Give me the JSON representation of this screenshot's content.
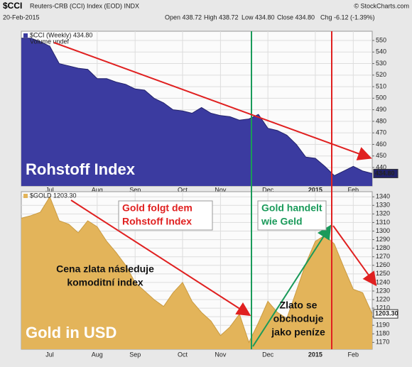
{
  "header": {
    "symbol": "$CCI",
    "name": "Reuters-CRB (CCI) Index (EOD) INDX",
    "source": "© StockCharts.com",
    "date": "20-Feb-2015",
    "quote": [
      "Open 438.72",
      "High 438.72",
      "Low 434.80",
      "Close 434.80",
      "Chg -6.12 (-1.39%)"
    ]
  },
  "chart_data": [
    {
      "type": "area",
      "label": "Rohstoff Index",
      "subtitle": "Volume undef",
      "categories": [
        null,
        null,
        null,
        "Jul",
        null,
        null,
        null,
        null,
        "Aug",
        null,
        null,
        null,
        "Sep",
        null,
        null,
        null,
        null,
        "Oct",
        null,
        null,
        null,
        "Nov",
        null,
        null,
        null,
        null,
        "Dec",
        null,
        null,
        null,
        null,
        "2015",
        null,
        null,
        null,
        "Feb",
        null,
        null
      ],
      "series": [
        {
          "name": "$CCI (Weekly) 434.80",
          "color": "#3b3ba0",
          "values": [
            552,
            552,
            549,
            545,
            530,
            528,
            526,
            525,
            517,
            517,
            514,
            512,
            508,
            507,
            500,
            496,
            490,
            489,
            487,
            492,
            487,
            485,
            484,
            481,
            482,
            486,
            474,
            472,
            468,
            460,
            449,
            448,
            441,
            433,
            437,
            441,
            437,
            434.8
          ],
          "value_labels": [
            null,
            null,
            null,
            null,
            null,
            null,
            null,
            null,
            null,
            null,
            null,
            null,
            null,
            null,
            null,
            null,
            null,
            null,
            null,
            null,
            null,
            null,
            null,
            null,
            null,
            null,
            null,
            null,
            null,
            null,
            null,
            null,
            null,
            null,
            null,
            null,
            null,
            "434.80"
          ]
        }
      ],
      "ylim": [
        424,
        558
      ],
      "yticks": [
        440,
        450,
        460,
        470,
        480,
        490,
        500,
        510,
        520,
        530,
        540,
        550
      ],
      "grid": true
    },
    {
      "type": "area",
      "label": "Gold in USD",
      "categories": [
        null,
        null,
        null,
        "Jul",
        null,
        null,
        null,
        null,
        "Aug",
        null,
        null,
        null,
        "Sep",
        null,
        null,
        null,
        null,
        "Oct",
        null,
        null,
        null,
        "Nov",
        null,
        null,
        null,
        null,
        "Dec",
        null,
        null,
        null,
        null,
        "2015",
        null,
        null,
        null,
        "Feb",
        null,
        null
      ],
      "series": [
        {
          "name": "$GOLD 1203.30",
          "color": "#e3b45a",
          "values": [
            1315,
            1318,
            1322,
            1340,
            1312,
            1308,
            1298,
            1312,
            1305,
            1288,
            1275,
            1260,
            1240,
            1230,
            1220,
            1212,
            1228,
            1240,
            1218,
            1205,
            1195,
            1178,
            1188,
            1203,
            1170,
            1193,
            1218,
            1205,
            1198,
            1230,
            1262,
            1288,
            1295,
            1285,
            1258,
            1232,
            1228,
            1203.3
          ],
          "value_labels": [
            null,
            null,
            null,
            null,
            null,
            null,
            null,
            null,
            null,
            null,
            null,
            null,
            null,
            null,
            null,
            null,
            null,
            null,
            null,
            null,
            null,
            null,
            null,
            null,
            null,
            null,
            null,
            null,
            null,
            null,
            null,
            null,
            null,
            null,
            null,
            null,
            null,
            "1203.30"
          ]
        }
      ],
      "ylim": [
        1162,
        1346
      ],
      "yticks": [
        1170,
        1180,
        1190,
        1200,
        1210,
        1220,
        1230,
        1240,
        1250,
        1260,
        1270,
        1280,
        1290,
        1300,
        1310,
        1320,
        1330,
        1340
      ],
      "grid": true
    }
  ],
  "annotations": {
    "gold_follows": [
      "Gold folgt dem",
      "Rohstoff Index"
    ],
    "gold_money": [
      "Gold handelt",
      "wie Geld"
    ],
    "cz_follows": [
      "Cena zlata následuje",
      "komoditní index"
    ],
    "cz_money": [
      "Zlato se",
      "obchoduje",
      "jako peníze"
    ]
  }
}
